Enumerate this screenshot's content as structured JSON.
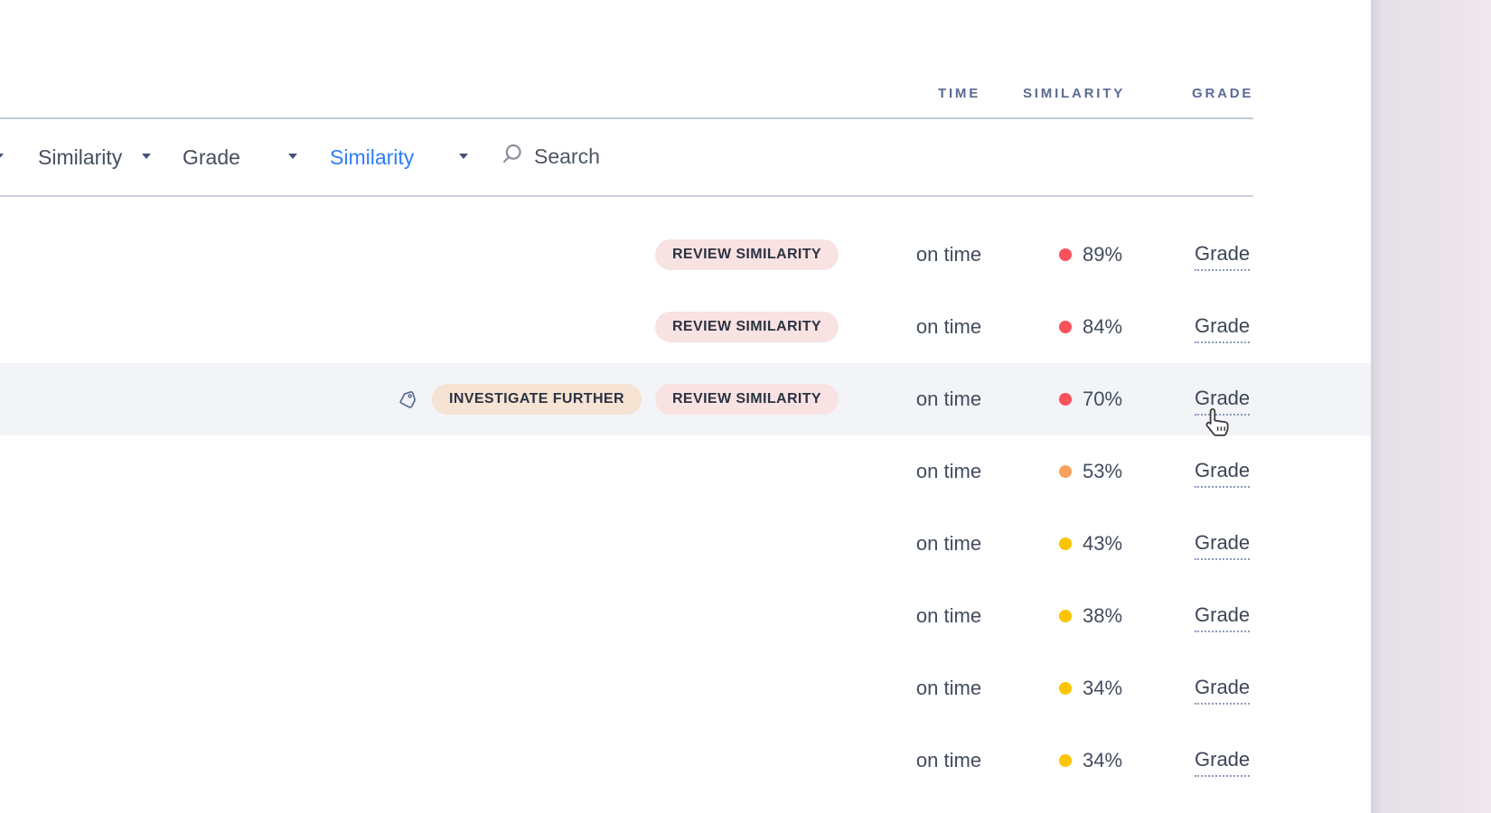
{
  "header": {
    "columns": [
      {
        "label": "TIME"
      },
      {
        "label": "SIMILARITY"
      },
      {
        "label": "GRADE"
      }
    ]
  },
  "filters": {
    "dropdowns": [
      {
        "label": "Similarity",
        "active": false
      },
      {
        "label": "Grade",
        "active": false
      },
      {
        "label": "Similarity",
        "active": true
      }
    ],
    "search": {
      "placeholder": "Search",
      "value": ""
    }
  },
  "icons": {
    "search": "search-icon",
    "tag": "tag-icon",
    "dropdown": "chevron-down-icon",
    "cursor": "hand-pointer-cursor"
  },
  "colors": {
    "red": "#f8525b",
    "orange": "#f9a05d",
    "yellow": "#fcc402",
    "accent_blue": "#2d7ff8",
    "badge_review_bg": "#f9e2e2",
    "badge_investigate_bg": "#f6e3d3",
    "row_highlight_bg": "#f2f4f7"
  },
  "table": {
    "rows": [
      {
        "flags": [
          {
            "type": "review",
            "label": "REVIEW SIMILARITY"
          }
        ],
        "tag_icon": false,
        "time": "on time",
        "similarity": "89%",
        "level": "red",
        "grade_label": "Grade",
        "highlighted": false
      },
      {
        "flags": [
          {
            "type": "review",
            "label": "REVIEW SIMILARITY"
          }
        ],
        "tag_icon": false,
        "time": "on time",
        "similarity": "84%",
        "level": "red",
        "grade_label": "Grade",
        "highlighted": false
      },
      {
        "flags": [
          {
            "type": "investigate",
            "label": "INVESTIGATE FURTHER"
          },
          {
            "type": "review",
            "label": "REVIEW SIMILARITY"
          }
        ],
        "tag_icon": true,
        "time": "on time",
        "similarity": "70%",
        "level": "red",
        "grade_label": "Grade",
        "highlighted": true
      },
      {
        "flags": [],
        "tag_icon": false,
        "time": "on time",
        "similarity": "53%",
        "level": "orange",
        "grade_label": "Grade",
        "highlighted": false
      },
      {
        "flags": [],
        "tag_icon": false,
        "time": "on time",
        "similarity": "43%",
        "level": "yellow",
        "grade_label": "Grade",
        "highlighted": false
      },
      {
        "flags": [],
        "tag_icon": false,
        "time": "on time",
        "similarity": "38%",
        "level": "yellow",
        "grade_label": "Grade",
        "highlighted": false
      },
      {
        "flags": [],
        "tag_icon": false,
        "time": "on time",
        "similarity": "34%",
        "level": "yellow",
        "grade_label": "Grade",
        "highlighted": false
      },
      {
        "flags": [],
        "tag_icon": false,
        "time": "on time",
        "similarity": "34%",
        "level": "yellow",
        "grade_label": "Grade",
        "highlighted": false
      }
    ]
  }
}
